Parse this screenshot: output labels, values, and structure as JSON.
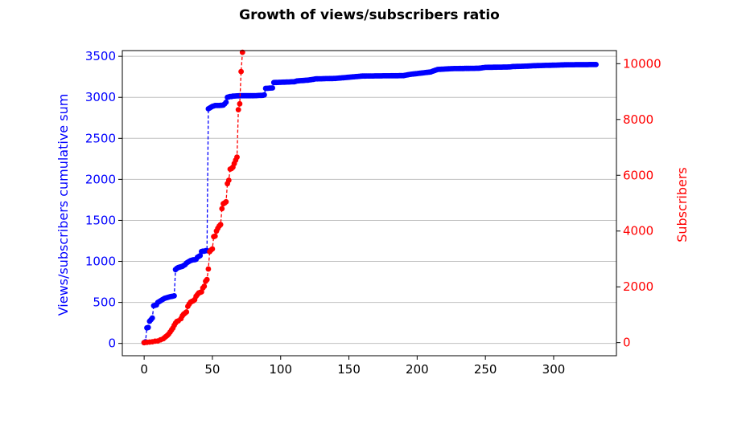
{
  "chart_data": {
    "type": "line",
    "title": "Growth of views/subscribers ratio",
    "xlabel": "",
    "ylabel_left": "Views/subscribers cumulative sum",
    "ylabel_right": "Subscribers",
    "xlim": [
      -16,
      346
    ],
    "ylim_left": [
      -150,
      3570
    ],
    "ylim_right": [
      -470,
      10470
    ],
    "x_ticks": [
      0,
      50,
      100,
      150,
      200,
      250,
      300
    ],
    "y_ticks_left": [
      0,
      500,
      1000,
      1500,
      2000,
      2500,
      3000,
      3500
    ],
    "y_ticks_right": [
      0,
      2000,
      4000,
      6000,
      8000,
      10000
    ],
    "grid": "horizontal",
    "colors": {
      "left": "#0000ff",
      "right": "#ff0000",
      "grid": "#c0c0c0",
      "axis": "#000000"
    },
    "series": [
      {
        "axis": "left",
        "color": "#0000ff",
        "anchors": [
          [
            0,
            10
          ],
          [
            1,
            20
          ],
          [
            2,
            190
          ],
          [
            3,
            195
          ],
          [
            4,
            270
          ],
          [
            5,
            290
          ],
          [
            6,
            310
          ],
          [
            7,
            460
          ],
          [
            8,
            465
          ],
          [
            9,
            470
          ],
          [
            10,
            500
          ],
          [
            11,
            510
          ],
          [
            12,
            520
          ],
          [
            13,
            530
          ],
          [
            14,
            540
          ],
          [
            15,
            550
          ],
          [
            16,
            555
          ],
          [
            17,
            560
          ],
          [
            18,
            565
          ],
          [
            19,
            570
          ],
          [
            20,
            572
          ],
          [
            21,
            575
          ],
          [
            22,
            580
          ],
          [
            23,
            900
          ],
          [
            24,
            915
          ],
          [
            25,
            925
          ],
          [
            26,
            930
          ],
          [
            27,
            935
          ],
          [
            28,
            940
          ],
          [
            29,
            950
          ],
          [
            30,
            960
          ],
          [
            31,
            980
          ],
          [
            32,
            990
          ],
          [
            33,
            1000
          ],
          [
            34,
            1010
          ],
          [
            35,
            1015
          ],
          [
            36,
            1020
          ],
          [
            37,
            1020
          ],
          [
            38,
            1025
          ],
          [
            39,
            1050
          ],
          [
            40,
            1060
          ],
          [
            41,
            1070
          ],
          [
            42,
            1120
          ],
          [
            43,
            1125
          ],
          [
            44,
            1125
          ],
          [
            45,
            1130
          ],
          [
            46,
            1130
          ],
          [
            47,
            2860
          ],
          [
            48,
            2870
          ],
          [
            49,
            2880
          ],
          [
            50,
            2890
          ],
          [
            51,
            2895
          ],
          [
            52,
            2900
          ],
          [
            55,
            2900
          ],
          [
            58,
            2905
          ],
          [
            59,
            2920
          ],
          [
            60,
            2940
          ],
          [
            61,
            3000
          ],
          [
            62,
            3005
          ],
          [
            63,
            3010
          ],
          [
            64,
            3010
          ],
          [
            65,
            3015
          ],
          [
            70,
            3020
          ],
          [
            80,
            3020
          ],
          [
            87,
            3025
          ],
          [
            88,
            3030
          ],
          [
            89,
            3110
          ],
          [
            90,
            3110
          ],
          [
            94,
            3115
          ],
          [
            95,
            3180
          ],
          [
            110,
            3190
          ],
          [
            112,
            3200
          ],
          [
            120,
            3210
          ],
          [
            126,
            3225
          ],
          [
            140,
            3230
          ],
          [
            160,
            3260
          ],
          [
            190,
            3265
          ],
          [
            195,
            3280
          ],
          [
            200,
            3290
          ],
          [
            210,
            3310
          ],
          [
            215,
            3340
          ],
          [
            220,
            3345
          ],
          [
            225,
            3350
          ],
          [
            245,
            3355
          ],
          [
            250,
            3365
          ],
          [
            268,
            3370
          ],
          [
            270,
            3375
          ],
          [
            280,
            3380
          ],
          [
            285,
            3385
          ],
          [
            295,
            3390
          ],
          [
            300,
            3392
          ],
          [
            310,
            3398
          ],
          [
            331,
            3400
          ]
        ]
      },
      {
        "axis": "right",
        "color": "#ff0000",
        "values": [
          [
            0,
            0
          ],
          [
            2,
            10
          ],
          [
            4,
            20
          ],
          [
            6,
            30
          ],
          [
            8,
            50
          ],
          [
            10,
            60
          ],
          [
            12,
            100
          ],
          [
            14,
            140
          ],
          [
            15,
            180
          ],
          [
            16,
            220
          ],
          [
            17,
            260
          ],
          [
            18,
            310
          ],
          [
            19,
            380
          ],
          [
            20,
            450
          ],
          [
            21,
            520
          ],
          [
            22,
            620
          ],
          [
            23,
            700
          ],
          [
            24,
            760
          ],
          [
            25,
            780
          ],
          [
            27,
            860
          ],
          [
            28,
            960
          ],
          [
            29,
            1020
          ],
          [
            30,
            1060
          ],
          [
            31,
            1100
          ],
          [
            32,
            1300
          ],
          [
            33,
            1380
          ],
          [
            34,
            1450
          ],
          [
            35,
            1480
          ],
          [
            36,
            1500
          ],
          [
            37,
            1540
          ],
          [
            38,
            1660
          ],
          [
            39,
            1720
          ],
          [
            40,
            1780
          ],
          [
            41,
            1800
          ],
          [
            42,
            1820
          ],
          [
            43,
            1960
          ],
          [
            44,
            2020
          ],
          [
            45,
            2200
          ],
          [
            46,
            2260
          ],
          [
            47,
            2640
          ],
          [
            48,
            3260
          ],
          [
            49,
            3320
          ],
          [
            50,
            3360
          ],
          [
            51,
            3800
          ],
          [
            52,
            3820
          ],
          [
            53,
            4000
          ],
          [
            54,
            4100
          ],
          [
            55,
            4180
          ],
          [
            56,
            4230
          ],
          [
            57,
            4800
          ],
          [
            58,
            4980
          ],
          [
            59,
            5010
          ],
          [
            60,
            5050
          ],
          [
            61,
            5700
          ],
          [
            62,
            5820
          ],
          [
            63,
            6220
          ],
          [
            64,
            6240
          ],
          [
            65,
            6290
          ],
          [
            66,
            6420
          ],
          [
            67,
            6540
          ],
          [
            68,
            6650
          ],
          [
            69,
            8350
          ],
          [
            70,
            8560
          ],
          [
            71,
            9720
          ],
          [
            72,
            10410
          ]
        ]
      }
    ]
  }
}
